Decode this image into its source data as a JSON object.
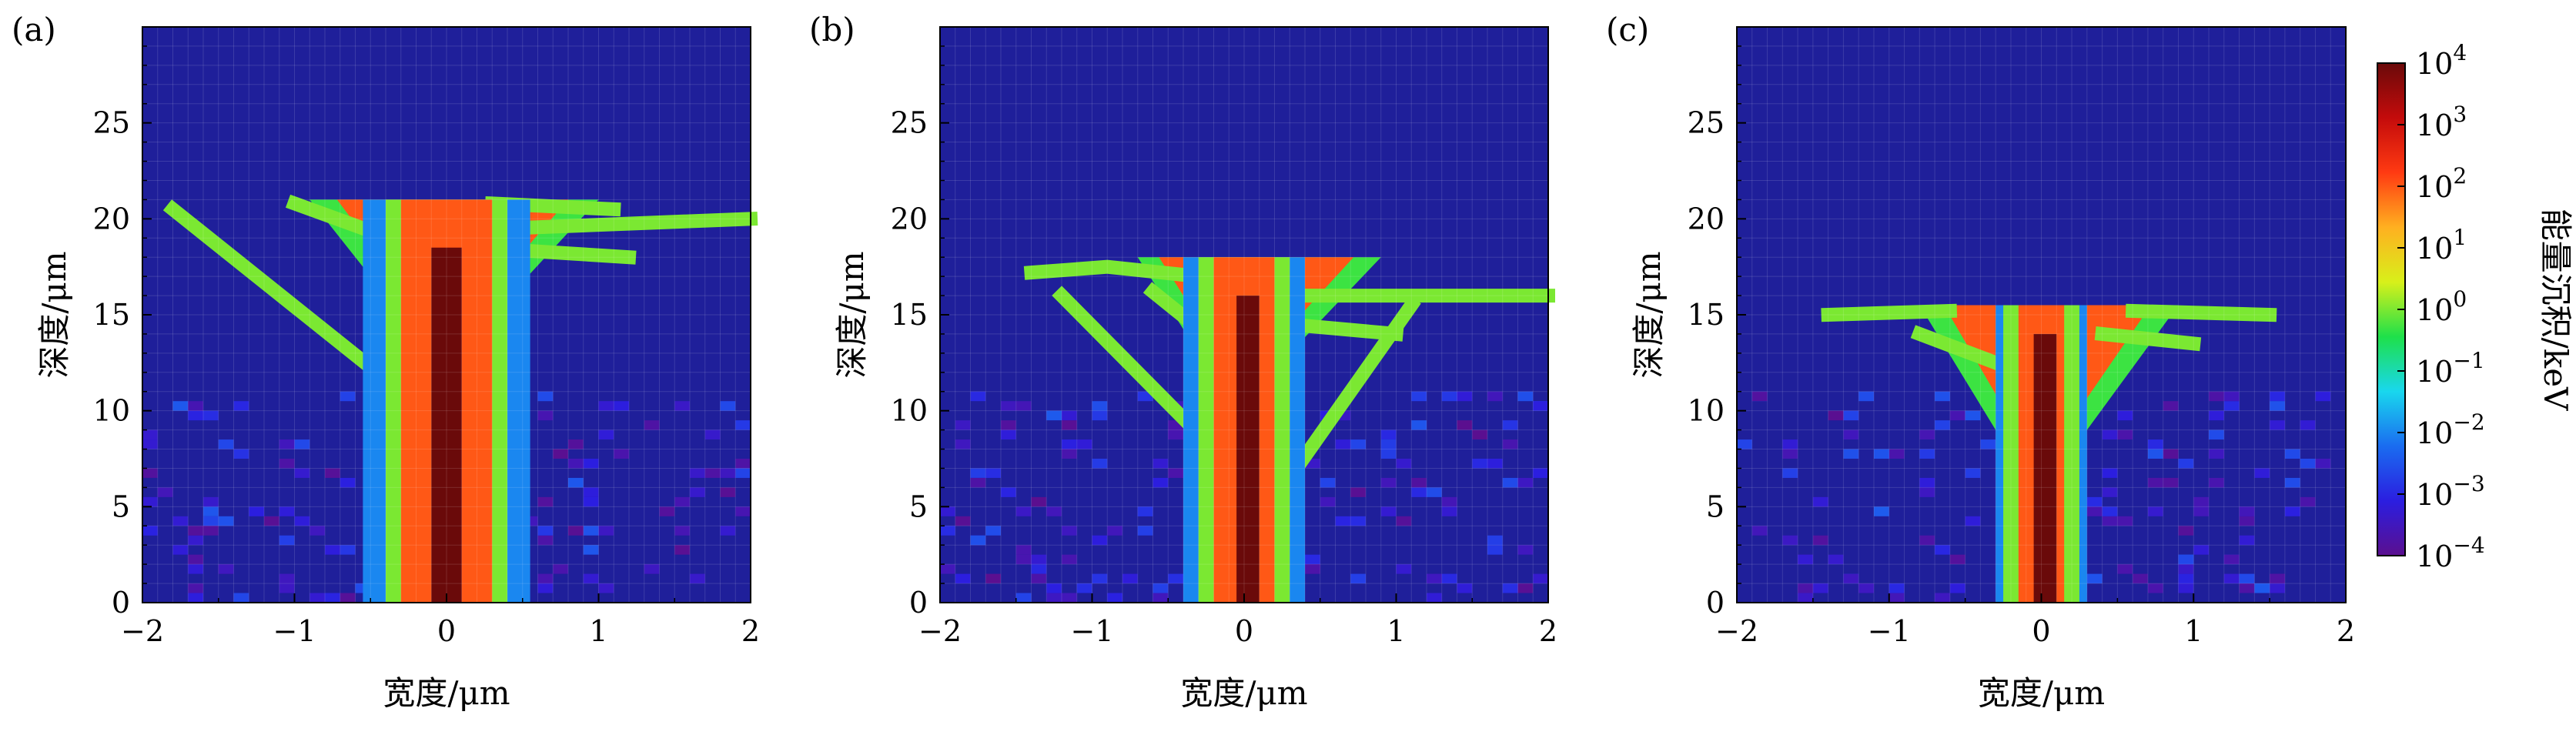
{
  "chart_data": [
    {
      "id": "a",
      "type": "heatmap",
      "panel_label": "(a)",
      "xlabel": "宽度/μm",
      "ylabel": "深度/μm",
      "xlim": [
        -2,
        2
      ],
      "ylim": [
        0,
        30
      ],
      "xticks": [
        -2,
        -1,
        0,
        1,
        2
      ],
      "yticks": [
        0,
        5,
        10,
        15,
        20,
        25
      ],
      "grid": true,
      "background_color": "#1f1f9a",
      "value_unit": "keV",
      "color_scale": "log",
      "trunk": [
        {
          "x_min": -0.55,
          "x_max": 0.55,
          "y_min": 0,
          "y_max": 21,
          "value": 0.01
        },
        {
          "x_min": -0.4,
          "x_max": 0.4,
          "y_min": 0,
          "y_max": 21,
          "value": 1
        },
        {
          "x_min": -0.3,
          "x_max": 0.3,
          "y_min": 0,
          "y_max": 21,
          "value": 100
        },
        {
          "x_min": -0.1,
          "x_max": 0.1,
          "y_min": 0,
          "y_max": 18.5,
          "value": 10000
        }
      ],
      "plume": {
        "y_top": 21,
        "y_bottom": 15,
        "x_left_top": -0.9,
        "x_right_top": 1.0,
        "value": 100
      },
      "tracks": [
        {
          "points": [
            [
              -1.8,
              20.5
            ],
            [
              -0.3,
              11
            ]
          ],
          "value": 1
        },
        {
          "points": [
            [
              -1.0,
              20.8
            ],
            [
              -0.2,
              18.5
            ]
          ],
          "value": 1
        },
        {
          "points": [
            [
              0.4,
              19.5
            ],
            [
              2.0,
              20.0
            ]
          ],
          "value": 1
        },
        {
          "points": [
            [
              0.3,
              20.8
            ],
            [
              1.1,
              20.5
            ]
          ],
          "value": 1
        },
        {
          "points": [
            [
              0.2,
              18.5
            ],
            [
              1.2,
              18.0
            ]
          ],
          "value": 1
        }
      ]
    },
    {
      "id": "b",
      "type": "heatmap",
      "panel_label": "(b)",
      "xlabel": "宽度/μm",
      "ylabel": "深度/μm",
      "xlim": [
        -2,
        2
      ],
      "ylim": [
        0,
        30
      ],
      "xticks": [
        -2,
        -1,
        0,
        1,
        2
      ],
      "yticks": [
        0,
        5,
        10,
        15,
        20,
        25
      ],
      "grid": true,
      "background_color": "#1f1f9a",
      "value_unit": "keV",
      "color_scale": "log",
      "trunk": [
        {
          "x_min": -0.4,
          "x_max": 0.4,
          "y_min": 0,
          "y_max": 18,
          "value": 0.01
        },
        {
          "x_min": -0.3,
          "x_max": 0.3,
          "y_min": 0,
          "y_max": 18,
          "value": 1
        },
        {
          "x_min": -0.2,
          "x_max": 0.2,
          "y_min": 0,
          "y_max": 18,
          "value": 100
        },
        {
          "x_min": -0.05,
          "x_max": 0.1,
          "y_min": 0,
          "y_max": 16,
          "value": 10000
        }
      ],
      "plume": {
        "y_top": 18,
        "y_bottom": 13,
        "x_left_top": -0.7,
        "x_right_top": 0.9,
        "value": 100
      },
      "tracks": [
        {
          "points": [
            [
              -1.4,
              17.2
            ],
            [
              -0.9,
              17.5
            ],
            [
              -0.3,
              17.0
            ]
          ],
          "value": 1
        },
        {
          "points": [
            [
              -1.2,
              16.0
            ],
            [
              -0.2,
              8.0
            ]
          ],
          "value": 1
        },
        {
          "points": [
            [
              -0.6,
              16.2
            ],
            [
              -0.1,
              13.0
            ]
          ],
          "value": 1
        },
        {
          "points": [
            [
              0.3,
              16.0
            ],
            [
              2.0,
              16.0
            ]
          ],
          "value": 1
        },
        {
          "points": [
            [
              1.1,
              15.5
            ],
            [
              0.3,
              6.5
            ]
          ],
          "value": 1
        },
        {
          "points": [
            [
              0.3,
              14.5
            ],
            [
              1.0,
              14.0
            ]
          ],
          "value": 1
        }
      ]
    },
    {
      "id": "c",
      "type": "heatmap",
      "panel_label": "(c)",
      "xlabel": "宽度/μm",
      "ylabel": "深度/μm",
      "xlim": [
        -2,
        2
      ],
      "ylim": [
        0,
        30
      ],
      "xticks": [
        -2,
        -1,
        0,
        1,
        2
      ],
      "yticks": [
        0,
        5,
        10,
        15,
        20,
        25
      ],
      "grid": true,
      "background_color": "#1f1f9a",
      "value_unit": "keV",
      "color_scale": "log",
      "trunk": [
        {
          "x_min": -0.3,
          "x_max": 0.3,
          "y_min": 0,
          "y_max": 15.5,
          "value": 0.01
        },
        {
          "x_min": -0.25,
          "x_max": 0.25,
          "y_min": 0,
          "y_max": 15.5,
          "value": 1
        },
        {
          "x_min": -0.15,
          "x_max": 0.15,
          "y_min": 0,
          "y_max": 15.5,
          "value": 100
        },
        {
          "x_min": -0.05,
          "x_max": 0.1,
          "y_min": 0,
          "y_max": 14,
          "value": 10000
        }
      ],
      "plume": {
        "y_top": 15.5,
        "y_bottom": 9,
        "x_left_top": -0.8,
        "x_right_top": 0.9,
        "value": 100
      },
      "tracks": [
        {
          "points": [
            [
              -1.4,
              15.0
            ],
            [
              -0.6,
              15.2
            ]
          ],
          "value": 1
        },
        {
          "points": [
            [
              0.6,
              15.2
            ],
            [
              1.5,
              15.0
            ]
          ],
          "value": 1
        },
        {
          "points": [
            [
              -0.8,
              14.0
            ],
            [
              -0.3,
              12.5
            ]
          ],
          "value": 1
        },
        {
          "points": [
            [
              0.4,
              14.0
            ],
            [
              1.0,
              13.5
            ]
          ],
          "value": 1
        }
      ]
    }
  ],
  "colorbar": {
    "label": "能量沉积/keV",
    "scale": "log",
    "range": [
      0.0001,
      10000
    ],
    "tick_labels": [
      {
        "base": "10",
        "exp": "4",
        "value": 10000
      },
      {
        "base": "10",
        "exp": "3",
        "value": 1000
      },
      {
        "base": "10",
        "exp": "2",
        "value": 100
      },
      {
        "base": "10",
        "exp": "1",
        "value": 10
      },
      {
        "base": "10",
        "exp": "0",
        "value": 1
      },
      {
        "base": "10",
        "exp": "−1",
        "value": 0.1
      },
      {
        "base": "10",
        "exp": "−2",
        "value": 0.01
      },
      {
        "base": "10",
        "exp": "−3",
        "value": 0.001
      },
      {
        "base": "10",
        "exp": "−4",
        "value": 0.0001
      }
    ],
    "colors": [
      "#5b0f8f",
      "#2b1ee0",
      "#1a6cf0",
      "#19d7ee",
      "#1ee04a",
      "#d8f01a",
      "#ffb020",
      "#ff3a12",
      "#c40b0b",
      "#6a0a0a"
    ]
  }
}
